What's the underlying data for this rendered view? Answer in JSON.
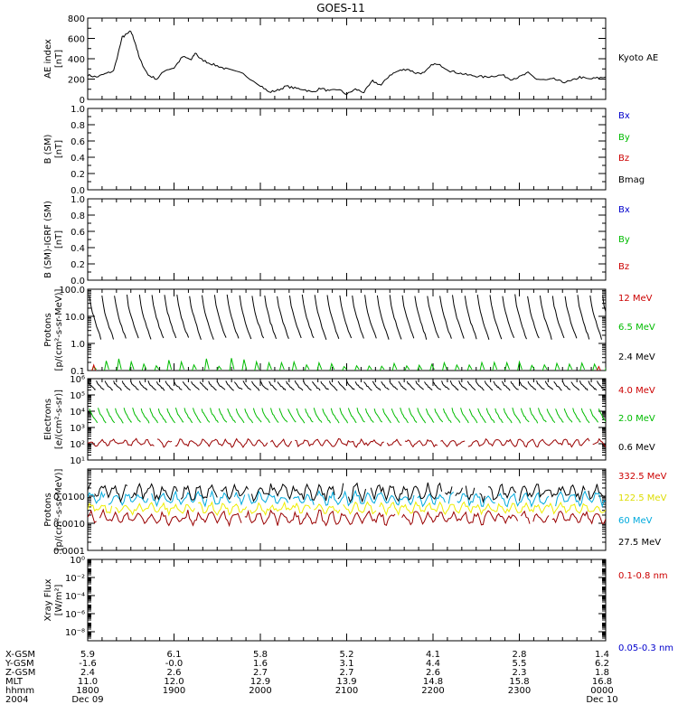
{
  "title": "GOES-11",
  "panels": [
    {
      "id": "ae",
      "ylabel": [
        "AE index",
        "[nT]"
      ],
      "scale": "linear",
      "ylim": [
        0,
        800
      ],
      "ticks": [
        {
          "v": 0,
          "t": "0"
        },
        {
          "v": 200,
          "t": "200"
        },
        {
          "v": 400,
          "t": "400"
        },
        {
          "v": 600,
          "t": "600"
        },
        {
          "v": 800,
          "t": "800"
        }
      ],
      "legend": [
        {
          "text": "Kyoto AE",
          "color": "#000000"
        }
      ]
    },
    {
      "id": "b-sm",
      "ylabel": [
        "B (SM)",
        "[nT]"
      ],
      "scale": "linear",
      "ylim": [
        0,
        1
      ],
      "ticks": [
        {
          "v": 0,
          "t": "0.0"
        },
        {
          "v": 0.2,
          "t": "0.2"
        },
        {
          "v": 0.4,
          "t": "0.4"
        },
        {
          "v": 0.6,
          "t": "0.6"
        },
        {
          "v": 0.8,
          "t": "0.8"
        },
        {
          "v": 1,
          "t": "1.0"
        }
      ],
      "legend": [
        {
          "text": "Bx",
          "color": "#0000cc"
        },
        {
          "text": "By",
          "color": "#00bb00"
        },
        {
          "text": "Bz",
          "color": "#cc0000"
        },
        {
          "text": "Bmag",
          "color": "#000000"
        }
      ]
    },
    {
      "id": "b-igrf",
      "ylabel": [
        "B (SM)-IGRF (SM)",
        "[nT]"
      ],
      "scale": "linear",
      "ylim": [
        0,
        1
      ],
      "ticks": [
        {
          "v": 0,
          "t": "0.0"
        },
        {
          "v": 0.2,
          "t": "0.2"
        },
        {
          "v": 0.4,
          "t": "0.4"
        },
        {
          "v": 0.6,
          "t": "0.6"
        },
        {
          "v": 0.8,
          "t": "0.8"
        },
        {
          "v": 1,
          "t": "1.0"
        }
      ],
      "legend": [
        {
          "text": "Bx",
          "color": "#0000cc"
        },
        {
          "text": "By",
          "color": "#00bb00"
        },
        {
          "text": "Bz",
          "color": "#cc0000"
        }
      ]
    },
    {
      "id": "protons-high",
      "ylabel": [
        "Protons",
        "[p/(cm²-s-sr-MeV)]"
      ],
      "scale": "log",
      "ylim": [
        0.1,
        100
      ],
      "ticks": [
        {
          "v": 0.1,
          "t": "0.1"
        },
        {
          "v": 1,
          "t": "1.0"
        },
        {
          "v": 10,
          "t": "10.0"
        },
        {
          "v": 100,
          "t": "100.0"
        }
      ],
      "legend": [
        {
          "text": "12 MeV",
          "color": "#cc0000"
        },
        {
          "text": "6.5 MeV",
          "color": "#00bb00"
        },
        {
          "text": "2.4 MeV",
          "color": "#000000"
        }
      ]
    },
    {
      "id": "electrons",
      "ylabel": [
        "Electrons",
        "[e/(cm²-s-sr)]"
      ],
      "scale": "log",
      "ylim": [
        10,
        1000000
      ],
      "ticks": [
        {
          "v": 10,
          "t": "10¹"
        },
        {
          "v": 100,
          "t": "10²"
        },
        {
          "v": 1000,
          "t": "10³"
        },
        {
          "v": 10000,
          "t": "10⁴"
        },
        {
          "v": 100000,
          "t": "10⁵"
        },
        {
          "v": 1000000,
          "t": "10⁶"
        }
      ],
      "legend": [
        {
          "text": "4.0 MeV",
          "color": "#cc0000"
        },
        {
          "text": "2.0 MeV",
          "color": "#00bb00"
        },
        {
          "text": "0.6 MeV",
          "color": "#000000"
        }
      ]
    },
    {
      "id": "protons-low",
      "ylabel": [
        "Protons",
        "[p/(cm²-s-sr-MeV)]"
      ],
      "scale": "log",
      "ylim": [
        0.0001,
        0.1
      ],
      "ticks": [
        {
          "v": 0.0001,
          "t": "0.0001"
        },
        {
          "v": 0.001,
          "t": "0.0010"
        },
        {
          "v": 0.01,
          "t": "0.0100"
        }
      ],
      "legend": [
        {
          "text": "332.5 MeV",
          "color": "#cc0000"
        },
        {
          "text": "122.5 MeV",
          "color": "#dddd00"
        },
        {
          "text": "60 MeV",
          "color": "#00aadd"
        },
        {
          "text": "27.5 MeV",
          "color": "#000000"
        }
      ]
    },
    {
      "id": "xray",
      "ylabel": [
        "Xray Flux",
        "[W/m²]"
      ],
      "scale": "log",
      "ylim": [
        1e-09,
        1
      ],
      "ticks": [
        {
          "v": 1e-08,
          "t": "10⁻⁸"
        },
        {
          "v": 1e-06,
          "t": "10⁻⁶"
        },
        {
          "v": 0.0001,
          "t": "10⁻⁴"
        },
        {
          "v": 0.01,
          "t": "10⁻²"
        },
        {
          "v": 1,
          "t": "10⁰"
        }
      ],
      "legend": [
        {
          "text": "0.1-0.8 nm",
          "color": "#cc0000"
        },
        {
          "text": "0.05-0.3 nm",
          "color": "#0000cc"
        }
      ]
    }
  ],
  "axis_rows": [
    {
      "label": "X-GSM",
      "values": [
        "5.9",
        "6.1",
        "5.8",
        "5.2",
        "4.1",
        "2.8",
        "1.4"
      ]
    },
    {
      "label": "Y-GSM",
      "values": [
        "-1.6",
        "-0.0",
        "1.6",
        "3.1",
        "4.4",
        "5.5",
        "6.2"
      ]
    },
    {
      "label": "Z-GSM",
      "values": [
        "2.4",
        "2.6",
        "2.7",
        "2.7",
        "2.6",
        "2.3",
        "1.8"
      ]
    },
    {
      "label": "MLT",
      "values": [
        "11.0",
        "12.0",
        "12.9",
        "13.9",
        "14.8",
        "15.8",
        "16.8"
      ]
    },
    {
      "label": "hhmm",
      "values": [
        "1800",
        "1900",
        "2000",
        "2100",
        "2200",
        "2300",
        "0000"
      ]
    },
    {
      "label": "2004",
      "values": [
        "Dec 09",
        "",
        "",
        "",
        "",
        "",
        "Dec 10"
      ]
    }
  ],
  "chart_data": {
    "type": "line",
    "title": "GOES-11",
    "x_unit": "UT hours (2004 Dec 09 18:00 to Dec 10 00:00)",
    "xlim": [
      18,
      24
    ],
    "ae_index": {
      "name": "Kyoto AE",
      "x": [
        18.0,
        18.1,
        18.2,
        18.3,
        18.4,
        18.45,
        18.5,
        18.55,
        18.6,
        18.7,
        18.8,
        18.9,
        19.0,
        19.1,
        19.2,
        19.25,
        19.3,
        19.4,
        19.5,
        19.6,
        19.8,
        20.0,
        20.1,
        20.2,
        20.3,
        20.4,
        20.5,
        20.6,
        20.7,
        20.8,
        20.9,
        21.0,
        21.1,
        21.2,
        21.3,
        21.4,
        21.5,
        21.6,
        21.7,
        21.8,
        21.9,
        22.0,
        22.1,
        22.2,
        22.3,
        22.4,
        22.5,
        22.6,
        22.7,
        22.8,
        22.9,
        23.0,
        23.1,
        23.2,
        23.3,
        23.4,
        23.5,
        23.6,
        23.7,
        23.8,
        23.9,
        24.0
      ],
      "values": [
        240,
        220,
        250,
        280,
        610,
        640,
        670,
        560,
        400,
        240,
        200,
        290,
        310,
        420,
        390,
        460,
        400,
        360,
        330,
        300,
        250,
        140,
        70,
        90,
        130,
        110,
        100,
        70,
        110,
        80,
        100,
        50,
        100,
        70,
        180,
        140,
        240,
        280,
        300,
        260,
        260,
        350,
        330,
        280,
        260,
        240,
        230,
        220,
        230,
        240,
        200,
        220,
        260,
        200,
        190,
        200,
        170,
        180,
        220,
        200,
        210,
        220
      ]
    },
    "protons_2_4_mev": {
      "name": "2.4 MeV",
      "pattern": "sawtooth",
      "range": [
        1.5,
        60
      ]
    },
    "protons_6_5_mev": {
      "name": "6.5 MeV",
      "pattern": "spikes",
      "range": [
        0.1,
        0.3
      ]
    },
    "electrons_0_6_mev": {
      "name": "0.6 MeV",
      "pattern": "sawtooth",
      "range": [
        200000,
        700000
      ]
    },
    "electrons_2_0_mev": {
      "name": "2.0 MeV",
      "pattern": "sawtooth",
      "range": [
        2000,
        15000
      ]
    },
    "electrons_4_0_mev": {
      "name": "4.0 MeV",
      "pattern": "noise",
      "range": [
        60,
        200
      ]
    },
    "protons_27_5_mev": {
      "name": "27.5 MeV",
      "pattern": "noise",
      "range": [
        0.006,
        0.03
      ]
    },
    "protons_60_mev": {
      "name": "60 MeV",
      "pattern": "noise",
      "range": [
        0.004,
        0.015
      ]
    },
    "protons_122_5_mev": {
      "name": "122.5 MeV",
      "pattern": "noise",
      "range": [
        0.002,
        0.006
      ]
    },
    "protons_332_5_mev": {
      "name": "332.5 MeV",
      "pattern": "noise",
      "range": [
        0.0008,
        0.003
      ]
    }
  }
}
